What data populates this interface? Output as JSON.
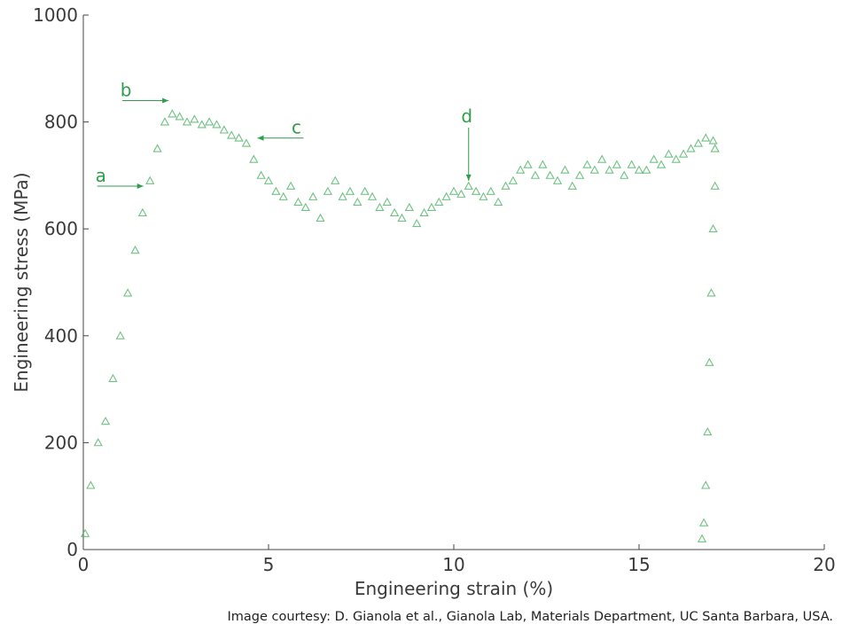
{
  "chart_data": {
    "type": "scatter",
    "title": "",
    "xlabel": "Engineering strain (%)",
    "ylabel": "Engineering stress (MPa)",
    "xlim": [
      0,
      20
    ],
    "ylim": [
      0,
      1000
    ],
    "xticks": [
      0,
      5,
      10,
      15,
      20
    ],
    "yticks": [
      0,
      200,
      400,
      600,
      800,
      1000
    ],
    "grid": false,
    "legend": "none",
    "marker": "triangle-open",
    "series_color": "#3fae5a",
    "annotation_color": "#2f9e4a",
    "series": [
      {
        "x": [
          0.05,
          0.2,
          0.4,
          0.6,
          0.8,
          1.0,
          1.2,
          1.4,
          1.6,
          1.8,
          2.0,
          2.2,
          2.4,
          2.6,
          2.8,
          3.0,
          3.2,
          3.4,
          3.6,
          3.8,
          4.0,
          4.2,
          4.4,
          4.6,
          4.8,
          5.0,
          5.2,
          5.4,
          5.6,
          5.8,
          6.0,
          6.2,
          6.4,
          6.6,
          6.8,
          7.0,
          7.2,
          7.4,
          7.6,
          7.8,
          8.0,
          8.2,
          8.4,
          8.6,
          8.8,
          9.0,
          9.2,
          9.4,
          9.6,
          9.8,
          10.0,
          10.2,
          10.4,
          10.6,
          10.8,
          11.0,
          11.2,
          11.4,
          11.6,
          11.8,
          12.0,
          12.2,
          12.4,
          12.6,
          12.8,
          13.0,
          13.2,
          13.4,
          13.6,
          13.8,
          14.0,
          14.2,
          14.4,
          14.6,
          14.8,
          15.0,
          15.2,
          15.4,
          15.6,
          15.8,
          16.0,
          16.2,
          16.4,
          16.6,
          16.8,
          17.0,
          17.05,
          17.05,
          17.0,
          16.95,
          16.9,
          16.85,
          16.8,
          16.75,
          16.7
        ],
        "y": [
          30,
          120,
          200,
          240,
          320,
          400,
          480,
          560,
          630,
          690,
          750,
          800,
          815,
          810,
          800,
          805,
          795,
          800,
          795,
          785,
          775,
          770,
          760,
          730,
          700,
          690,
          670,
          660,
          680,
          650,
          640,
          660,
          620,
          670,
          690,
          660,
          670,
          650,
          670,
          660,
          640,
          650,
          630,
          620,
          640,
          610,
          630,
          640,
          650,
          660,
          670,
          665,
          680,
          670,
          660,
          670,
          650,
          680,
          690,
          710,
          720,
          700,
          720,
          700,
          690,
          710,
          680,
          700,
          720,
          710,
          730,
          710,
          720,
          700,
          720,
          710,
          710,
          730,
          720,
          740,
          730,
          740,
          750,
          760,
          770,
          765,
          750,
          680,
          600,
          480,
          350,
          220,
          120,
          50,
          20
        ]
      }
    ],
    "annotations": [
      {
        "label": "a",
        "x": 1.62,
        "y": 680
      },
      {
        "label": "b",
        "x": 2.3,
        "y": 840
      },
      {
        "label": "c",
        "x": 4.7,
        "y": 770
      },
      {
        "label": "d",
        "x": 10.4,
        "y": 690
      }
    ],
    "source": "Image courtesy: D. Gianola et al., Gianola Lab, Materials Department, UC Santa Barbara, USA."
  }
}
